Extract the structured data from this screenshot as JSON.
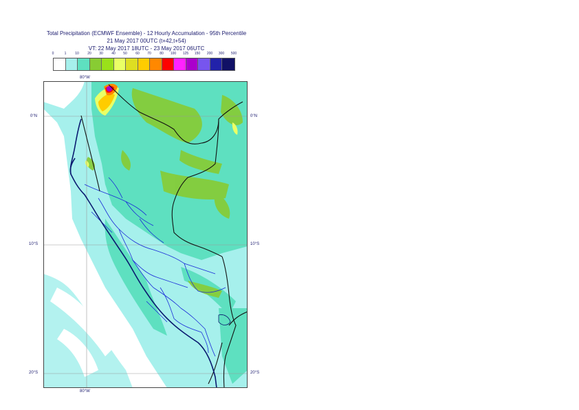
{
  "title": {
    "line1": "Total Precipitation (ECMWF Ensemble) - 12 Hourly Accumulation - 95th Percentile",
    "line2": "21 May 2017 00UTC (t+42,t+54)",
    "line3": "VT: 22 May 2017 18UTC - 23 May 2017 06UTC"
  },
  "legend": {
    "labels": [
      "0",
      "1",
      "10",
      "20",
      "30",
      "40",
      "50",
      "60",
      "70",
      "80",
      "100",
      "125",
      "150",
      "200",
      "300",
      "500"
    ],
    "colors": [
      "#ffffff",
      "#a6f0ec",
      "#5ee0c0",
      "#88cc33",
      "#9ae01a",
      "#eaff66",
      "#dede22",
      "#ffcc00",
      "#ff8800",
      "#ff0000",
      "#ff22ff",
      "#aa00cc",
      "#7755ee",
      "#2222aa",
      "#111166"
    ]
  },
  "map": {
    "lon_labels": {
      "top": "80°W",
      "bottom": "80°W"
    },
    "lat_labels": {
      "left": [
        "0°N",
        "10°S",
        "20°S"
      ],
      "right": [
        "0°N",
        "10°S",
        "20°S"
      ]
    }
  }
}
